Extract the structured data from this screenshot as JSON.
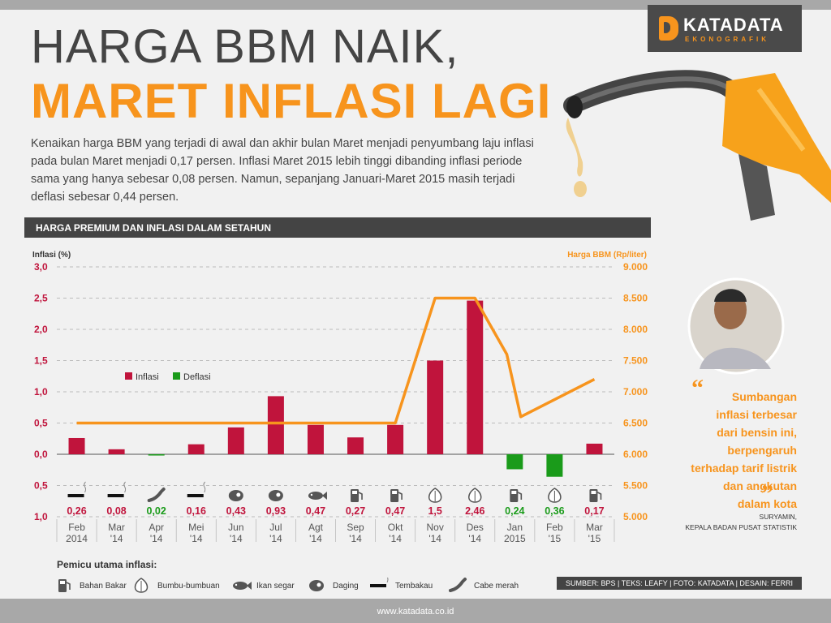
{
  "header": {
    "title_line1": "HARGA BBM NAIK,",
    "title_line2": "MARET INFLASI LAGI",
    "intro": "Kenaikan harga BBM yang terjadi di awal dan akhir bulan Maret menjadi penyumbang laju inflasi pada bulan Maret menjadi 0,17 persen. Inflasi Maret 2015 lebih tinggi dibanding inflasi periode sama yang hanya sebesar 0,08 persen. Namun, sepanjang Januari-Maret 2015 masih terjadi deflasi sebesar 0,44 persen."
  },
  "logo": {
    "main": "KATADATA",
    "sub": "EKONOGRAFIK"
  },
  "section_title": "HARGA PREMIUM DAN INFLASI DALAM SETAHUN",
  "colors": {
    "inflasi": "#c0143c",
    "deflasi": "#1a9b1a",
    "bbm_line": "#f7941d",
    "dark": "#444444"
  },
  "chart_data": {
    "type": "bar",
    "months": [
      {
        "l1": "Feb",
        "l2": "2014"
      },
      {
        "l1": "Mar",
        "l2": "'14"
      },
      {
        "l1": "Apr",
        "l2": "'14"
      },
      {
        "l1": "Mei",
        "l2": "'14"
      },
      {
        "l1": "Jun",
        "l2": "'14"
      },
      {
        "l1": "Jul",
        "l2": "'14"
      },
      {
        "l1": "Agt",
        "l2": "'14"
      },
      {
        "l1": "Sep",
        "l2": "'14"
      },
      {
        "l1": "Okt",
        "l2": "'14"
      },
      {
        "l1": "Nov",
        "l2": "'14"
      },
      {
        "l1": "Des",
        "l2": "'14"
      },
      {
        "l1": "Jan",
        "l2": "2015"
      },
      {
        "l1": "Feb",
        "l2": "'15"
      },
      {
        "l1": "Mar",
        "l2": "'15"
      }
    ],
    "inflation_values": [
      0.26,
      0.08,
      -0.02,
      0.16,
      0.43,
      0.93,
      0.47,
      0.27,
      0.47,
      1.5,
      2.46,
      -0.24,
      -0.36,
      0.17
    ],
    "value_labels": [
      "0,26",
      "0,08",
      "0,02",
      "0,16",
      "0,43",
      "0,93",
      "0,47",
      "0,27",
      "0,47",
      "1,5",
      "2,46",
      "0,24",
      "0,36",
      "0,17"
    ],
    "drivers": [
      "tembakau",
      "tembakau",
      "cabe",
      "tembakau",
      "daging",
      "daging",
      "ikan",
      "bahan_bakar",
      "bahan_bakar",
      "bumbu",
      "bumbu",
      "bahan_bakar",
      "bumbu",
      "bahan_bakar"
    ],
    "series": [
      {
        "name": "Inflasi",
        "type": "bar"
      },
      {
        "name": "Deflasi",
        "type": "bar"
      }
    ],
    "bbm_line": {
      "points": [
        {
          "x": 0,
          "y": 6500
        },
        {
          "x": 8,
          "y": 6500
        },
        {
          "x": 9,
          "y": 8500
        },
        {
          "x": 10,
          "y": 8500
        },
        {
          "x": 10.8,
          "y": 7600
        },
        {
          "x": 11.15,
          "y": 6600
        },
        {
          "x": 13,
          "y": 7200
        }
      ]
    },
    "y_left": {
      "label": "Inflasi (%)",
      "min": -1.0,
      "max": 3.0,
      "ticks": [
        {
          "v": 3.0,
          "t": "3,0"
        },
        {
          "v": 2.5,
          "t": "2,5"
        },
        {
          "v": 2.0,
          "t": "2,0"
        },
        {
          "v": 1.5,
          "t": "1,5"
        },
        {
          "v": 1.0,
          "t": "1,0"
        },
        {
          "v": 0.5,
          "t": "0,5"
        },
        {
          "v": 0.0,
          "t": "0,0"
        },
        {
          "v": -0.5,
          "t": "0,5"
        },
        {
          "v": -1.0,
          "t": "1,0"
        }
      ]
    },
    "y_right": {
      "label": "Harga BBM (Rp/liter)",
      "min": 5000,
      "max": 9000,
      "ticks": [
        "9.000",
        "8.500",
        "8.000",
        "7.500",
        "7.000",
        "6.500",
        "6.000",
        "5.500",
        "5.000"
      ]
    },
    "grid": "dashed",
    "legend_position": "inside-left"
  },
  "drivers_legend": {
    "title": "Pemicu utama inflasi:",
    "items": [
      {
        "key": "bahan_bakar",
        "label": "Bahan Bakar"
      },
      {
        "key": "bumbu",
        "label": "Bumbu-bumbuan"
      },
      {
        "key": "ikan",
        "label": "Ikan segar"
      },
      {
        "key": "daging",
        "label": "Daging"
      },
      {
        "key": "tembakau",
        "label": "Tembakau"
      },
      {
        "key": "cabe",
        "label": "Cabe merah"
      }
    ]
  },
  "quote": {
    "text_lines": [
      "Sumbangan",
      "inflasi terbesar",
      "dari bensin ini,",
      "berpengaruh",
      "terhadap tarif listrik",
      "dan angkutan",
      "dalam kota"
    ],
    "open_mark": "“",
    "close_mark": "”",
    "person": "SURYAMIN,",
    "role": "KEPALA BADAN PUSAT STATISTIK"
  },
  "credits": "SUMBER: BPS | TEKS: LEAFY | FOTO: KATADATA | DESAIN: FERRI",
  "footer_url": "www.katadata.co.id"
}
